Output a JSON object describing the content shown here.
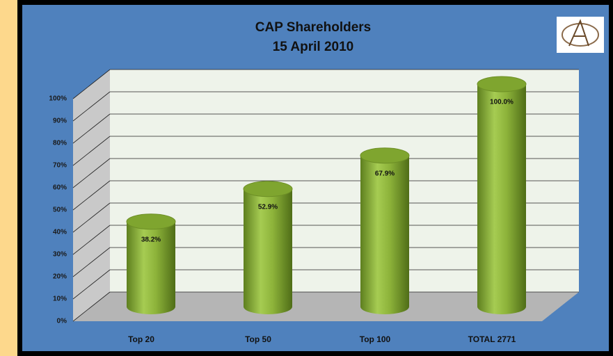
{
  "chart_data": {
    "type": "bar",
    "title": "CAP Shareholders",
    "subtitle": "15 April 2010",
    "categories": [
      "Top 20",
      "Top 50",
      "Top 100",
      "TOTAL 2771"
    ],
    "values": [
      38.2,
      52.9,
      67.9,
      100
    ],
    "value_labels": [
      "38.2%",
      "52.9%",
      "67.9%",
      "100.0%"
    ],
    "color": "#8db33a",
    "ylim": [
      0,
      100
    ],
    "yticks": [
      {
        "value": 0,
        "label": "0%"
      },
      {
        "value": 10,
        "label": "10%"
      },
      {
        "value": 20,
        "label": "20%"
      },
      {
        "value": 30,
        "label": "30%"
      },
      {
        "value": 40,
        "label": "40%"
      },
      {
        "value": 50,
        "label": "50%"
      },
      {
        "value": 60,
        "label": "60%"
      },
      {
        "value": 70,
        "label": "70%"
      },
      {
        "value": 80,
        "label": "80%"
      },
      {
        "value": 90,
        "label": "90%"
      },
      {
        "value": 100,
        "label": "100%"
      }
    ],
    "grid": true
  }
}
